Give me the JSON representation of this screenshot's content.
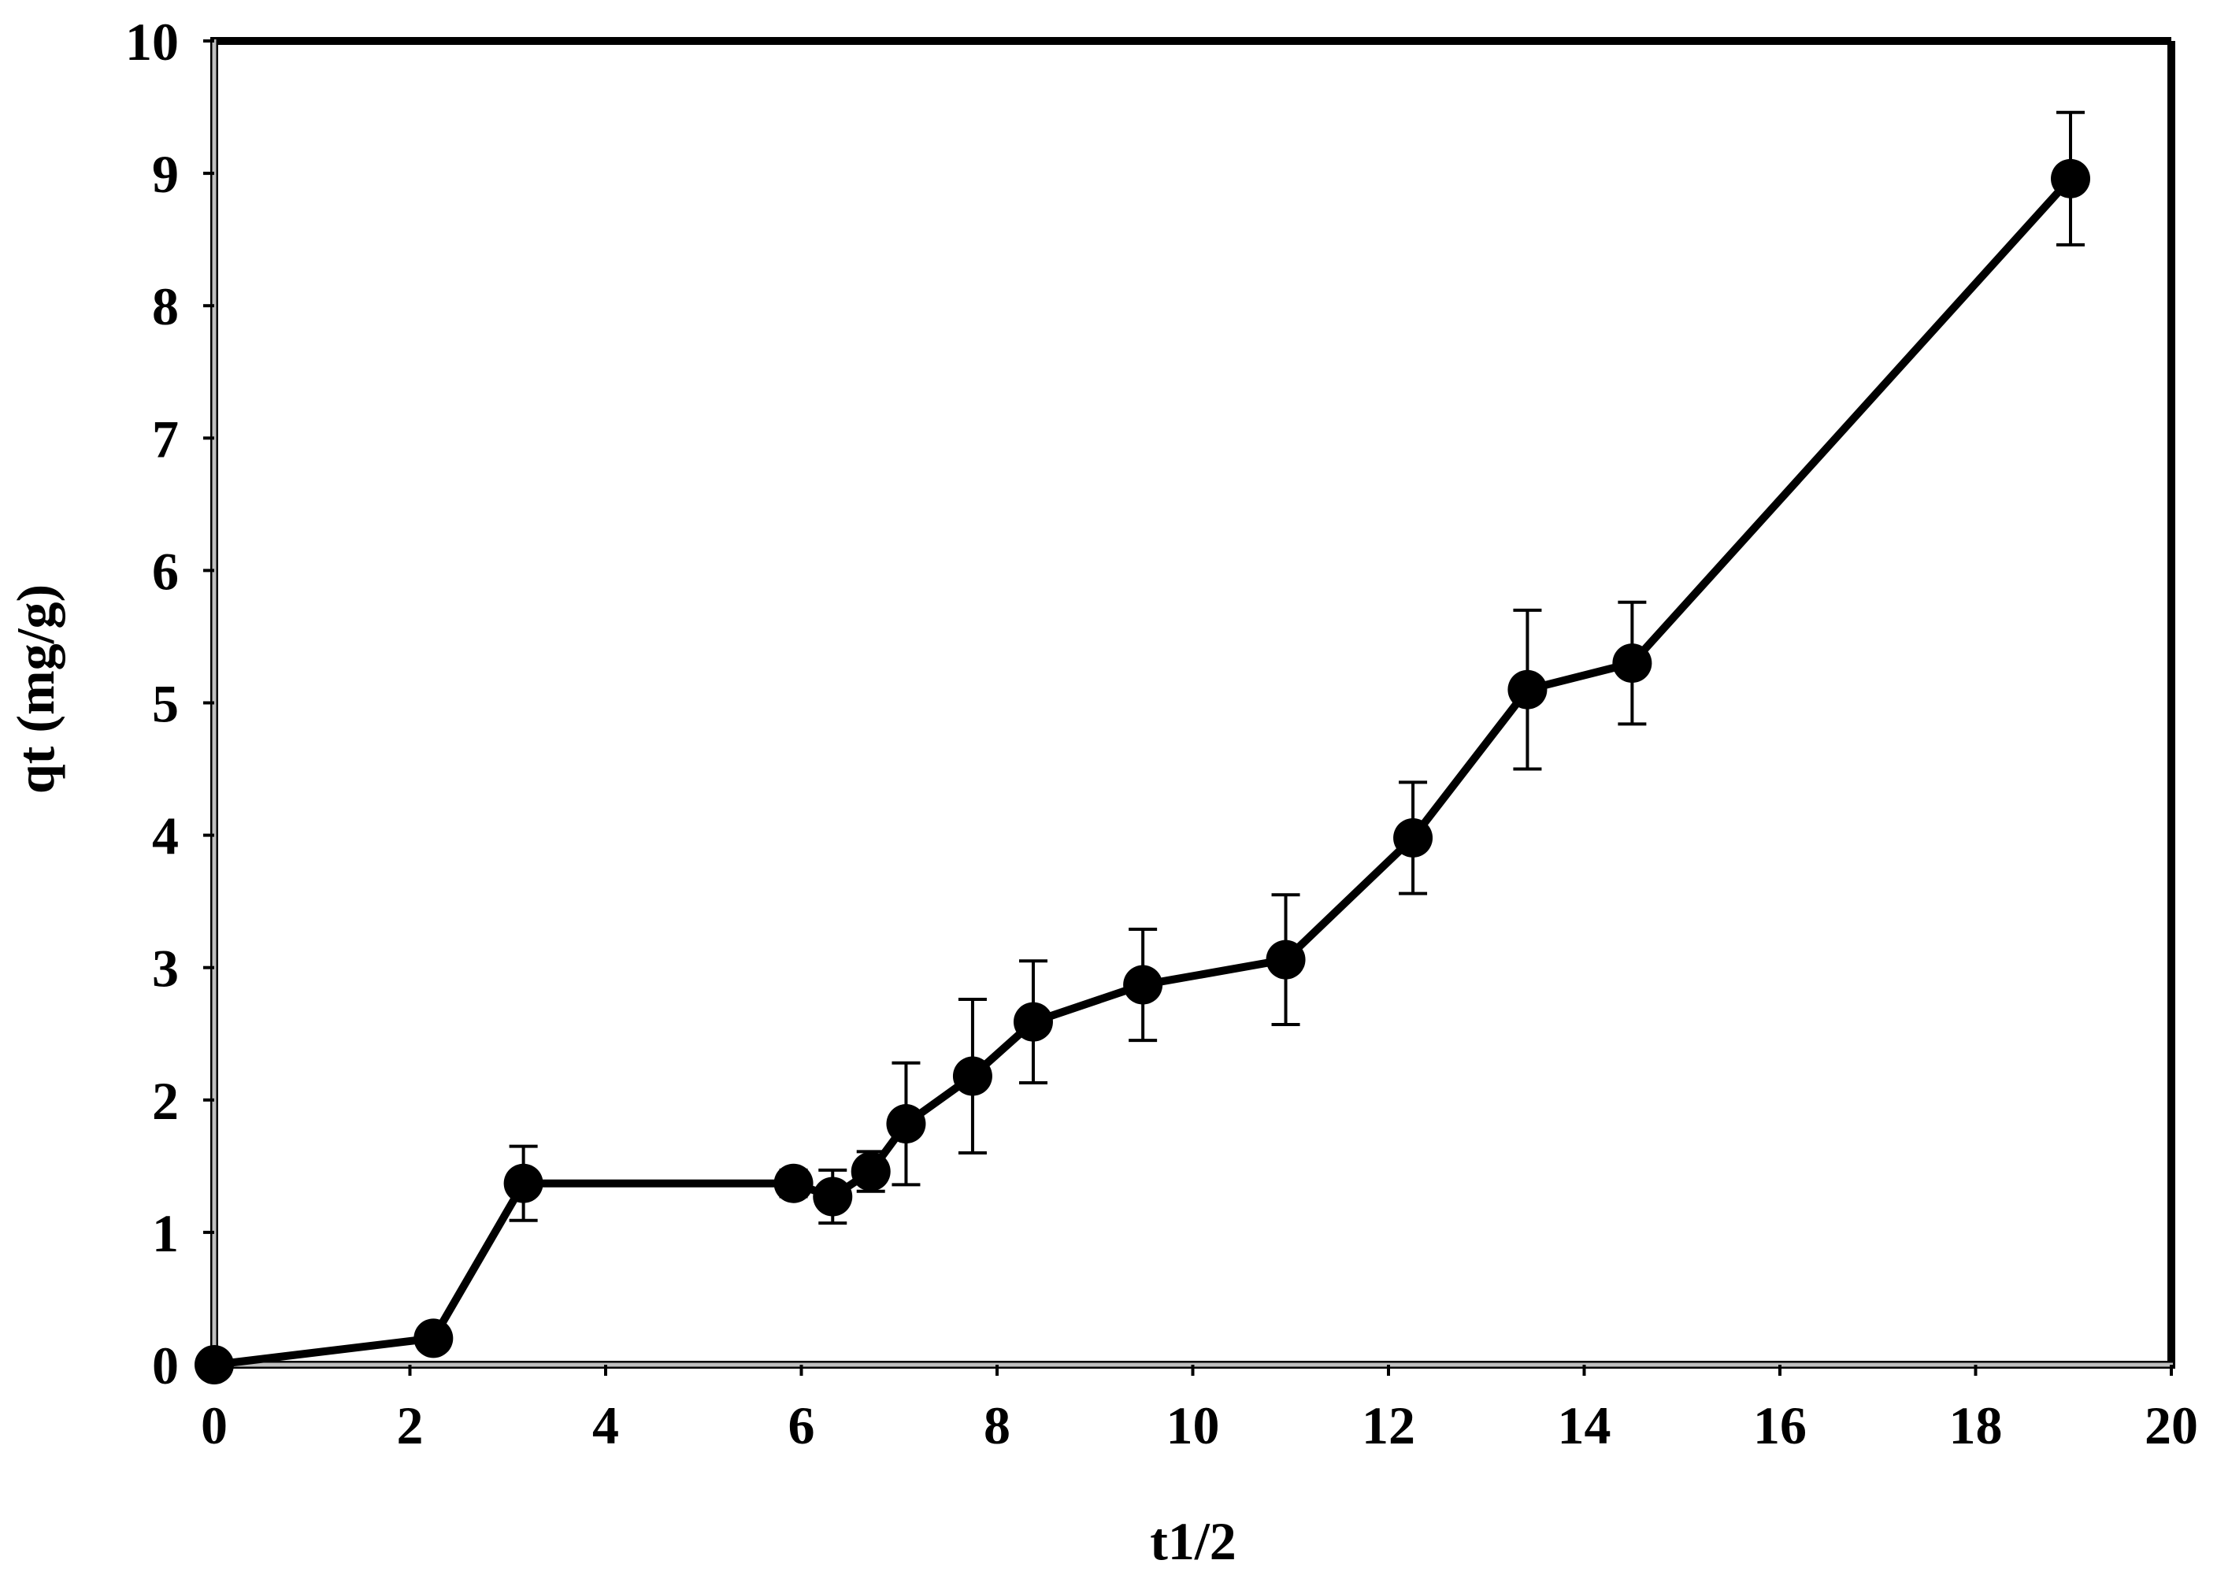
{
  "chart_data": {
    "type": "line",
    "title": "",
    "xlabel": "t1/2",
    "ylabel": "qt (mg/g)",
    "xlim": [
      0,
      20
    ],
    "ylim": [
      0,
      10
    ],
    "x_ticks": [
      0,
      2,
      4,
      6,
      8,
      10,
      12,
      14,
      16,
      18,
      20
    ],
    "y_ticks": [
      0,
      1,
      2,
      3,
      4,
      5,
      6,
      7,
      8,
      9,
      10
    ],
    "x_tick_labels": [
      "0",
      "2",
      "4",
      "6",
      "8",
      "10",
      "12",
      "14",
      "16",
      "18",
      "20"
    ],
    "y_tick_labels": [
      "0",
      "1",
      "2",
      "3",
      "4",
      "5",
      "6",
      "7",
      "8",
      "9",
      "10"
    ],
    "grid": false,
    "legend": "none",
    "colors": {
      "line": "#000000",
      "marker": "#000000",
      "frame": "#000000",
      "left_axis": "#bfbfbf",
      "bottom_axis": "#bfbfbf"
    },
    "series": [
      {
        "x": [
          0,
          2.24,
          3.16,
          5.92,
          6.32,
          6.71,
          7.07,
          7.75,
          8.37,
          9.49,
          10.95,
          12.25,
          13.42,
          14.49,
          18.97
        ],
        "y": [
          0.0,
          0.2,
          1.37,
          1.37,
          1.27,
          1.46,
          1.82,
          2.18,
          2.59,
          2.87,
          3.06,
          3.98,
          5.1,
          5.3,
          8.96
        ],
        "error": [
          0,
          0,
          0.28,
          0.1,
          0.2,
          0.15,
          0.46,
          0.58,
          0.46,
          0.42,
          0.49,
          0.42,
          0.6,
          0.46,
          0.5
        ]
      }
    ]
  }
}
